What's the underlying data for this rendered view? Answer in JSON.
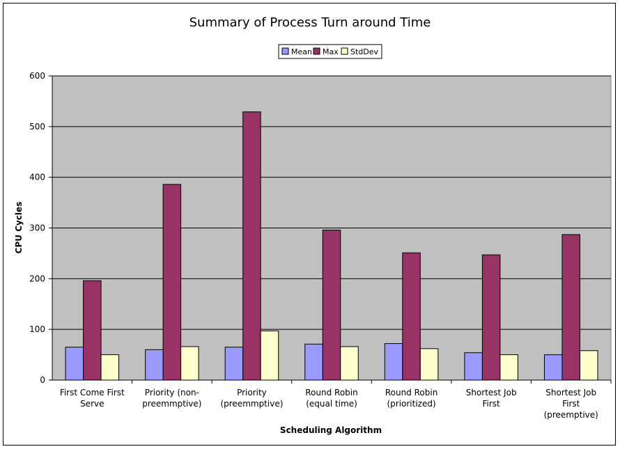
{
  "chart_data": {
    "type": "bar",
    "title": "Summary of Process Turn around Time",
    "xlabel": "Scheduling Algorithm",
    "ylabel": "CPU Cycles",
    "ylim": [
      0,
      600
    ],
    "yticks": [
      0,
      100,
      200,
      300,
      400,
      500,
      600
    ],
    "grid": true,
    "legend_position": "top-center",
    "categories": [
      [
        "First Come First",
        "Serve"
      ],
      [
        "Priority (non-",
        "preemmptive)"
      ],
      [
        "Priority",
        "(preemmptive)"
      ],
      [
        "Round Robin",
        "(equal time)"
      ],
      [
        "Round Robin",
        "(prioritized)"
      ],
      [
        "Shortest Job",
        "First"
      ],
      [
        "Shortest Job",
        "First",
        "(preemptive)"
      ]
    ],
    "series": [
      {
        "name": "Mean",
        "color": "#9999ff",
        "values": [
          65,
          60,
          65,
          71,
          72,
          54,
          50
        ]
      },
      {
        "name": "Max",
        "color": "#993366",
        "values": [
          196,
          386,
          529,
          296,
          251,
          247,
          287
        ]
      },
      {
        "name": "StdDev",
        "color": "#ffffcc",
        "values": [
          50,
          66,
          97,
          66,
          62,
          50,
          58
        ]
      }
    ],
    "colors": {
      "plot_background": "#c0c0c0",
      "gridline": "#000000"
    }
  }
}
